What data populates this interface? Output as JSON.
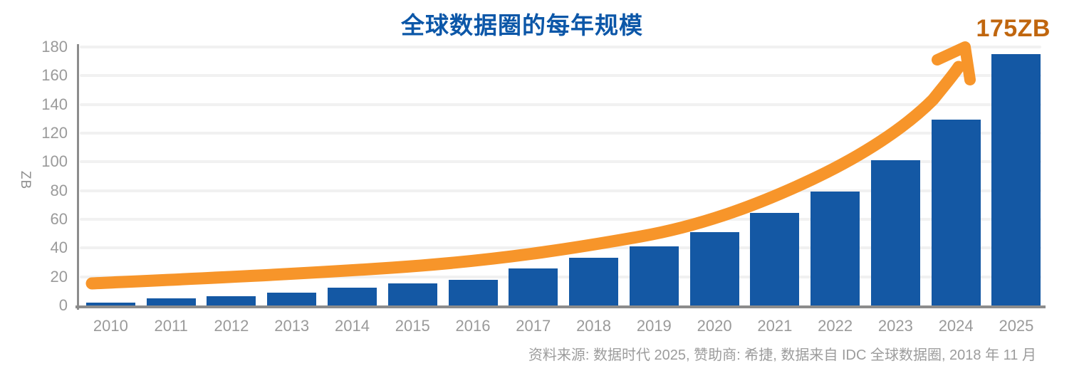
{
  "title": "全球数据圈的每年规模",
  "annotation": "175ZB",
  "source_note": "资料来源: 数据时代 2025, 赞助商: 希捷, 数据来自 IDC 全球数据圈, 2018 年 11 月",
  "colors": {
    "bar": "#1458A4",
    "title": "#0C57A8",
    "arrow": "#F7952A",
    "annotation": "#C0660E",
    "axis": "#8C8C8C",
    "gridline": "#F1F1F1",
    "tick_text": "#9A9A9A"
  },
  "chart_data": {
    "type": "bar",
    "title": "全球数据圈的每年规模",
    "xlabel": "",
    "ylabel": "ZB",
    "categories": [
      "2010",
      "2011",
      "2012",
      "2013",
      "2014",
      "2015",
      "2016",
      "2017",
      "2018",
      "2019",
      "2020",
      "2021",
      "2022",
      "2023",
      "2024",
      "2025"
    ],
    "values": [
      2,
      5,
      6.5,
      9,
      12.5,
      15.5,
      18,
      26,
      33,
      41,
      51,
      64.5,
      79.5,
      101,
      129.5,
      175
    ],
    "ylim": [
      0,
      180
    ],
    "yticks": [
      0,
      20,
      40,
      60,
      80,
      100,
      120,
      140,
      160,
      180
    ],
    "grid": true,
    "legend": "none",
    "annotations": [
      {
        "text": "175ZB",
        "target_category": "2025",
        "value": 175,
        "color": "#C0660E"
      }
    ],
    "overlays": [
      {
        "type": "trend-arrow",
        "shape": "exponential-curve",
        "color": "#F7952A",
        "from_category": "2010",
        "to_category": "2025"
      }
    ]
  }
}
